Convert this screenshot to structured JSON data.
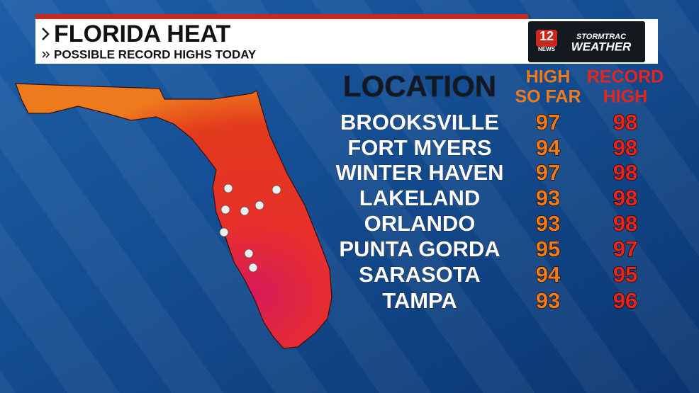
{
  "header": {
    "title": "FLORIDA HEAT",
    "subtitle": "POSSIBLE RECORD HIGHS TODAY"
  },
  "logo": {
    "channel": "12",
    "news": "NEWS",
    "line1": "STORMTRAC",
    "line2": "WEATHER"
  },
  "table": {
    "columns": [
      "LOCATION",
      [
        "HIGH",
        "SO FAR"
      ],
      [
        "RECORD",
        "HIGH"
      ]
    ],
    "rows": [
      [
        "BROOKSVILLE",
        97,
        98
      ],
      [
        "FORT MYERS",
        94,
        98
      ],
      [
        "WINTER HAVEN",
        97,
        98
      ],
      [
        "LAKELAND",
        93,
        98
      ],
      [
        "ORLANDO",
        93,
        98
      ],
      [
        "PUNTA GORDA",
        95,
        97
      ],
      [
        "SARASOTA",
        94,
        95
      ],
      [
        "TAMPA",
        93,
        96
      ]
    ]
  }
}
